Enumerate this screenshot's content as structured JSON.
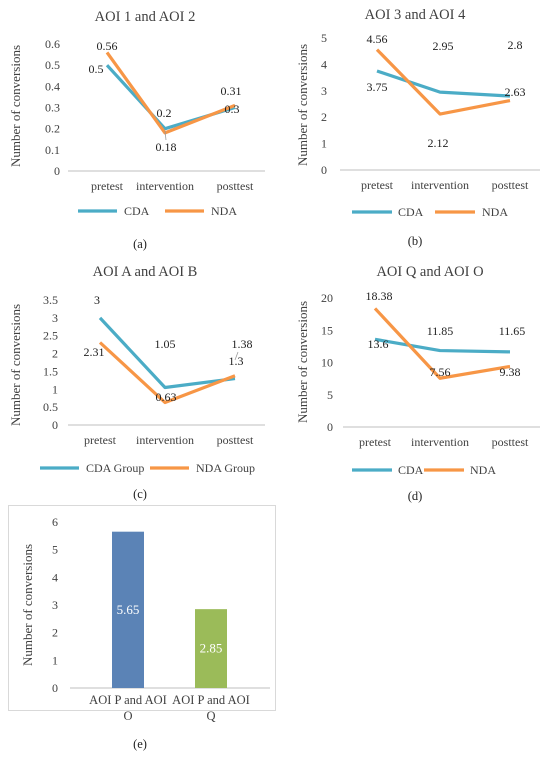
{
  "colors": {
    "cda": "#4BACC6",
    "nda": "#F79646",
    "axis": "#bfbfbf",
    "grid": "#d9d9d9",
    "bar_p_o": "#5B83B6",
    "bar_p_q": "#9BBB59",
    "text": "#404040"
  },
  "chart_data": [
    {
      "id": "a",
      "type": "line",
      "title": "AOI 1 and AOI 2",
      "ylabel": "Number of conversions",
      "xlabel": "",
      "categories": [
        "pretest",
        "intervention",
        "posttest"
      ],
      "ylim": [
        0,
        0.6
      ],
      "yticks": [
        "0",
        "0.1",
        "0.2",
        "0.3",
        "0.4",
        "0.5",
        "0.6"
      ],
      "grid": false,
      "legend": "bottom",
      "series": [
        {
          "name": "CDA",
          "values": [
            0.5,
            0.2,
            0.3
          ]
        },
        {
          "name": "NDA",
          "values": [
            0.56,
            0.18,
            0.31
          ]
        }
      ],
      "caption": "(a)"
    },
    {
      "id": "b",
      "type": "line",
      "title": "AOI 3 and AOI 4",
      "ylabel": "Number of conversions",
      "xlabel": "",
      "categories": [
        "pretest",
        "intervention",
        "posttest"
      ],
      "ylim": [
        0,
        5
      ],
      "yticks": [
        "0",
        "1",
        "2",
        "3",
        "4",
        "5"
      ],
      "grid": false,
      "legend": "bottom",
      "series": [
        {
          "name": "CDA",
          "values": [
            3.75,
            2.95,
            2.8
          ]
        },
        {
          "name": "NDA",
          "values": [
            4.56,
            2.12,
            2.63
          ]
        }
      ],
      "caption": "(b)"
    },
    {
      "id": "c",
      "type": "line",
      "title": "AOI A and AOI B",
      "ylabel": "Number of conversions",
      "xlabel": "",
      "categories": [
        "pretest",
        "intervention",
        "posttest"
      ],
      "ylim": [
        0,
        3.5
      ],
      "yticks": [
        "0",
        "0.5",
        "1",
        "1.5",
        "2",
        "2.5",
        "3",
        "3.5"
      ],
      "grid": false,
      "legend": "bottom",
      "series": [
        {
          "name": "CDA Group",
          "values": [
            3,
            1.05,
            1.3
          ]
        },
        {
          "name": "NDA Group",
          "values": [
            2.31,
            0.63,
            1.38
          ]
        }
      ],
      "caption": "(c)"
    },
    {
      "id": "d",
      "type": "line",
      "title": "AOI Q and AOI O",
      "ylabel": "Number of conversions",
      "xlabel": "",
      "categories": [
        "pretest",
        "intervention",
        "posttest"
      ],
      "ylim": [
        0,
        20
      ],
      "yticks": [
        "0",
        "5",
        "10",
        "15",
        "20"
      ],
      "grid": false,
      "legend": "bottom",
      "series": [
        {
          "name": "CDA",
          "values": [
            13.6,
            11.85,
            11.65
          ]
        },
        {
          "name": "NDA",
          "values": [
            18.38,
            7.56,
            9.38
          ]
        }
      ],
      "caption": "(d)"
    },
    {
      "id": "e",
      "type": "bar",
      "title": "",
      "ylabel": "Number of conversions",
      "xlabel": "",
      "categories": [
        "AOI P and AOI O",
        "AOI P and AOI Q"
      ],
      "category_lines": [
        [
          "AOI P and AOI",
          "O"
        ],
        [
          "AOI P and AOI",
          "Q"
        ]
      ],
      "values": [
        5.65,
        2.85
      ],
      "ylim": [
        0,
        6
      ],
      "yticks": [
        "0",
        "1",
        "2",
        "3",
        "4",
        "5",
        "6"
      ],
      "grid": false,
      "legend": "none",
      "caption": "(e)"
    }
  ]
}
